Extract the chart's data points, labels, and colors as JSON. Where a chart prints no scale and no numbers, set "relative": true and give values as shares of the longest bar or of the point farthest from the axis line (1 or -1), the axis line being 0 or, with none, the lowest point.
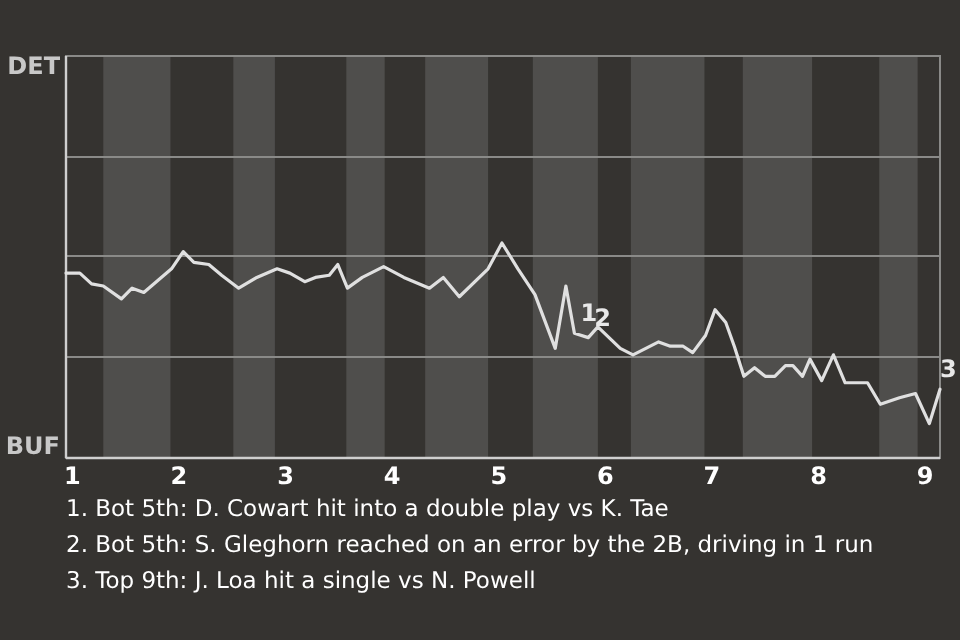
{
  "chart_data": {
    "type": "line",
    "relative": true,
    "x": [
      0.94,
      1.07,
      1.18,
      1.29,
      1.46,
      1.56,
      1.67,
      1.93,
      2.04,
      2.14,
      2.28,
      2.4,
      2.56,
      2.73,
      2.92,
      3.04,
      3.18,
      3.28,
      3.41,
      3.49,
      3.58,
      3.72,
      3.92,
      4.11,
      4.35,
      4.48,
      4.63,
      4.9,
      5.03,
      5.18,
      5.34,
      5.53,
      5.63,
      5.71,
      5.84,
      5.93,
      6.14,
      6.26,
      6.5,
      6.61,
      6.73,
      6.82,
      6.94,
      7.03,
      7.13,
      7.21,
      7.3,
      7.4,
      7.5,
      7.59,
      7.69,
      7.76,
      7.85,
      7.92,
      8.03,
      8.14,
      8.25,
      8.46,
      8.58,
      8.76,
      8.91,
      9.04,
      9.14
    ],
    "series": [
      {
        "color": "#e0e0e0",
        "values": [
          0.86,
          0.86,
          0.81,
          0.8,
          0.74,
          0.79,
          0.77,
          0.88,
          0.96,
          0.91,
          0.9,
          0.85,
          0.79,
          0.84,
          0.88,
          0.86,
          0.82,
          0.84,
          0.85,
          0.9,
          0.79,
          0.84,
          0.89,
          0.84,
          0.79,
          0.84,
          0.75,
          0.88,
          1,
          0.88,
          0.76,
          0.51,
          0.8,
          0.58,
          0.56,
          0.61,
          0.51,
          0.48,
          0.54,
          0.52,
          0.52,
          0.49,
          0.57,
          0.69,
          0.63,
          0.52,
          0.38,
          0.42,
          0.38,
          0.38,
          0.43,
          0.43,
          0.38,
          0.46,
          0.36,
          0.48,
          0.35,
          0.35,
          0.25,
          0.28,
          0.3,
          0.16,
          0.32
        ]
      }
    ],
    "xlim": [
      0.94,
      9.14
    ],
    "xticks": [
      1,
      2,
      3,
      4,
      5,
      6,
      7,
      8,
      9
    ],
    "ref_lines": [
      {
        "axis": "y",
        "value": 0.47,
        "color": "#8a8a88"
      },
      {
        "axis": "y",
        "value": 0.94,
        "color": "#8a8a88"
      },
      {
        "axis": "y",
        "value": 1.4,
        "color": "#8a8a88"
      }
    ],
    "bands": [
      {
        "axis": "x",
        "from": 1.29,
        "to": 1.92,
        "color": "#4f4e4c"
      },
      {
        "axis": "x",
        "from": 2.51,
        "to": 2.9,
        "color": "#4f4e4c"
      },
      {
        "axis": "x",
        "from": 3.57,
        "to": 3.93,
        "color": "#4f4e4c"
      },
      {
        "axis": "x",
        "from": 4.31,
        "to": 4.9,
        "color": "#4f4e4c"
      },
      {
        "axis": "x",
        "from": 5.32,
        "to": 5.93,
        "color": "#4f4e4c"
      },
      {
        "axis": "x",
        "from": 6.24,
        "to": 6.93,
        "color": "#4f4e4c"
      },
      {
        "axis": "x",
        "from": 7.29,
        "to": 7.94,
        "color": "#4f4e4c"
      },
      {
        "axis": "x",
        "from": 8.57,
        "to": 8.93,
        "color": "#4f4e4c"
      }
    ],
    "annotations": [
      "DET",
      "BUF",
      {
        "text": "1",
        "x": 5.71,
        "y": 0.58
      },
      {
        "text": "2",
        "x": 5.84,
        "y": 0.56
      },
      {
        "text": "3",
        "x": 9.14,
        "y": 0.32
      },
      "1. Bot 5th: D. Cowart hit into a double play vs K. Tae",
      "2. Bot 5th: S. Gleghorn reached on an error by the 2B, driving in 1 run",
      "3. Top 9th: J. Loa hit a single vs N. Powell"
    ]
  }
}
